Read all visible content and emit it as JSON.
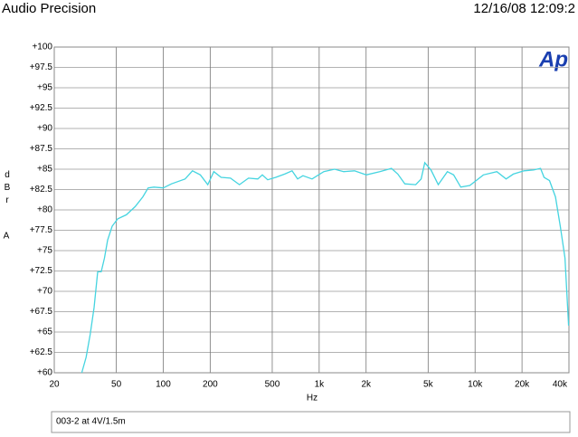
{
  "chart_data": {
    "type": "line",
    "brand": "Audio Precision",
    "timestamp": "12/16/08 12:09:2",
    "logo": "Ap",
    "xlabel": "Hz",
    "ylabel": "dBr",
    "ylabel_ref": "A",
    "xscale": "log",
    "grid": true,
    "xlim": [
      20,
      40000
    ],
    "ylim": [
      60,
      100
    ],
    "xticks": [
      20,
      50,
      100,
      200,
      500,
      {
        "value": 1000,
        "label": "1k"
      },
      {
        "value": 2000,
        "label": "2k"
      },
      {
        "value": 5000,
        "label": "5k"
      },
      {
        "value": 10000,
        "label": "10k"
      },
      {
        "value": 20000,
        "label": "20k"
      },
      {
        "value": 40000,
        "label": "40k"
      }
    ],
    "yticks": [
      {
        "value": 60,
        "label": "+60"
      },
      {
        "value": 62.5,
        "label": "+62.5"
      },
      {
        "value": 65,
        "label": "+65"
      },
      {
        "value": 67.5,
        "label": "+67.5"
      },
      {
        "value": 70,
        "label": "+70"
      },
      {
        "value": 72.5,
        "label": "+72.5"
      },
      {
        "value": 75,
        "label": "+75"
      },
      {
        "value": 77.5,
        "label": "+77.5"
      },
      {
        "value": 80,
        "label": "+80"
      },
      {
        "value": 82.5,
        "label": "+82.5"
      },
      {
        "value": 85,
        "label": "+85"
      },
      {
        "value": 87.5,
        "label": "+87.5"
      },
      {
        "value": 90,
        "label": "+90"
      },
      {
        "value": 92.5,
        "label": "+92.5"
      },
      {
        "value": 95,
        "label": "+95"
      },
      {
        "value": 97.5,
        "label": "+97.5"
      },
      {
        "value": 100,
        "label": "+100"
      }
    ],
    "x": [
      30,
      32,
      34,
      36,
      38,
      40,
      42,
      44,
      47,
      51,
      58,
      66,
      74,
      80,
      87,
      100,
      113,
      138,
      154,
      173,
      193,
      211,
      235,
      270,
      308,
      352,
      404,
      432,
      467,
      527,
      601,
      670,
      727,
      787,
      900,
      1070,
      1256,
      1436,
      1685,
      2003,
      2446,
      2908,
      3193,
      3546,
      4160,
      4509,
      4756,
      5218,
      5806,
      6640,
      7280,
      8100,
      9250,
      11300,
      13800,
      15800,
      17600,
      20600,
      23700,
      26300,
      27700,
      30000,
      32800,
      35200,
      37700,
      39800
    ],
    "series": [
      {
        "name": "003-2 at 4V/1.5m",
        "color": "#45d4e0",
        "values": [
          60,
          61.9,
          64.7,
          68,
          72.4,
          72.4,
          74.1,
          76.3,
          78,
          78.9,
          79.4,
          80.4,
          81.6,
          82.7,
          82.8,
          82.7,
          83.2,
          83.8,
          84.8,
          84.3,
          83.1,
          84.7,
          84,
          83.9,
          83.1,
          83.9,
          83.8,
          84.3,
          83.7,
          84,
          84.4,
          84.8,
          83.8,
          84.2,
          83.8,
          84.7,
          85,
          84.7,
          84.8,
          84.3,
          84.7,
          85.1,
          84.4,
          83.2,
          83.1,
          83.8,
          85.8,
          84.9,
          83.1,
          84.7,
          84.3,
          82.8,
          83,
          84.3,
          84.7,
          83.8,
          84.4,
          84.8,
          84.9,
          85.1,
          84,
          83.6,
          81.6,
          78,
          74.1,
          65.8
        ]
      }
    ]
  }
}
